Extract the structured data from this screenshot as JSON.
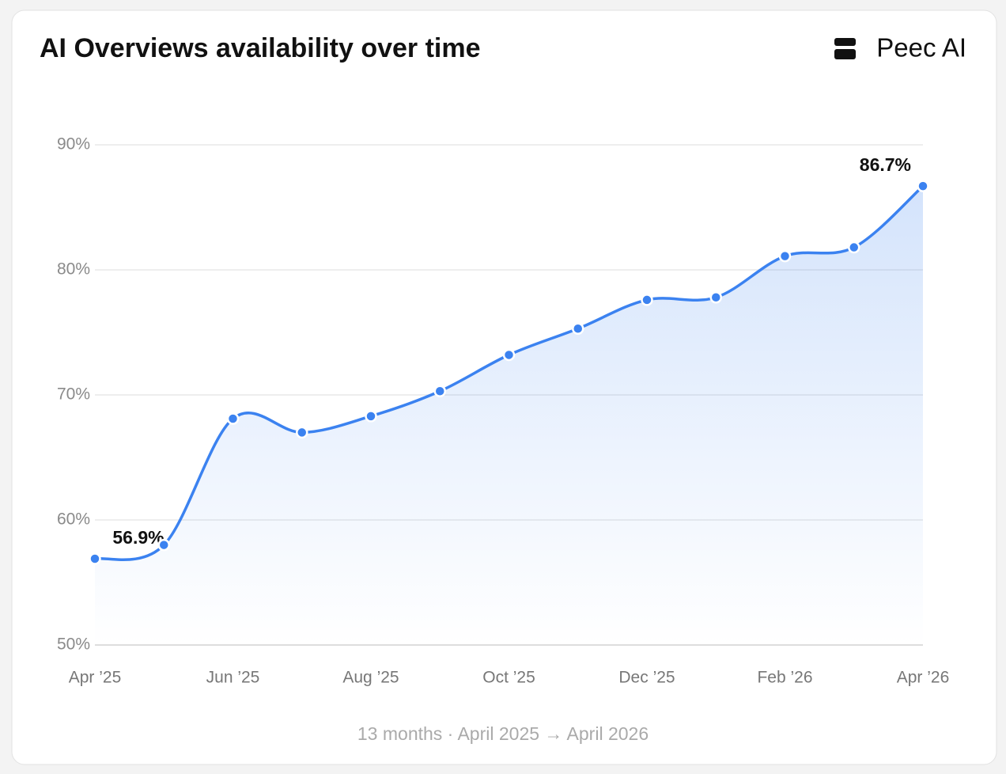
{
  "chart_data": {
    "type": "line",
    "title": "AI Overviews availability over time",
    "brand": "Peec AI",
    "footnote": "13 months · April 2025 → April 2026",
    "categories": [
      "Apr ’25",
      null,
      "Jun ’25",
      null,
      "Aug ’25",
      null,
      "Oct ’25",
      null,
      "Dec ’25",
      null,
      "Feb ’26",
      null,
      "Apr ’26"
    ],
    "series": [
      {
        "name": "AI Overviews availability",
        "color": "#3b82f0",
        "values": [
          56.9,
          58.0,
          68.1,
          67.0,
          68.3,
          70.3,
          73.2,
          75.3,
          77.6,
          77.8,
          81.1,
          81.8,
          86.7
        ],
        "value_labels": [
          "56.9%",
          null,
          null,
          null,
          null,
          null,
          null,
          null,
          null,
          null,
          null,
          null,
          "86.7%"
        ]
      }
    ],
    "ylim": [
      50,
      90
    ],
    "yticks": [
      {
        "value": 50,
        "label": "50%"
      },
      {
        "value": 60,
        "label": "60%"
      },
      {
        "value": 70,
        "label": "70%"
      },
      {
        "value": 80,
        "label": "80%"
      },
      {
        "value": 90,
        "label": "90%"
      }
    ],
    "grid": true
  }
}
